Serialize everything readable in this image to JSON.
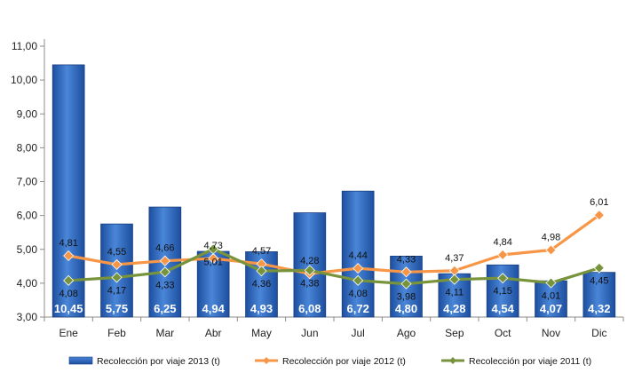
{
  "chart_data": {
    "type": "bar",
    "categories": [
      "Ene",
      "Feb",
      "Mar",
      "Abr",
      "May",
      "Jun",
      "Jul",
      "Ago",
      "Sep",
      "Oct",
      "Nov",
      "Dic"
    ],
    "ylim": [
      3.0,
      11.0
    ],
    "yticks": [
      "3,00",
      "4,00",
      "5,00",
      "6,00",
      "7,00",
      "8,00",
      "9,00",
      "10,00",
      "11,00"
    ],
    "ytick_values": [
      3,
      4,
      5,
      6,
      7,
      8,
      9,
      10,
      11
    ],
    "series": [
      {
        "name": "Recolección por viaje 2013 (t)",
        "kind": "bar",
        "color": "#3a6fc4",
        "values": [
          10.45,
          5.75,
          6.25,
          4.94,
          4.93,
          6.08,
          6.72,
          4.8,
          4.28,
          4.54,
          4.07,
          4.32
        ],
        "labels": [
          "10,45",
          "5,75",
          "6,25",
          "4,94",
          "4,93",
          "6,08",
          "6,72",
          "4,80",
          "4,28",
          "4,54",
          "4,07",
          "4,32"
        ]
      },
      {
        "name": "Recolección por viaje 2012 (t)",
        "kind": "line",
        "color": "#f79646",
        "values": [
          4.81,
          4.55,
          4.66,
          4.73,
          4.57,
          4.28,
          4.44,
          4.33,
          4.37,
          4.84,
          4.98,
          6.01
        ],
        "labels": [
          "4,81",
          "4,55",
          "4,66",
          "4,73",
          "4,57",
          "4,28",
          "4,44",
          "4,33",
          "4,37",
          "4,84",
          "4,98",
          "6,01"
        ]
      },
      {
        "name": "Recolección por viaje 2011 (t)",
        "kind": "line",
        "color": "#77933c",
        "values": [
          4.08,
          4.17,
          4.33,
          5.01,
          4.36,
          4.38,
          4.08,
          3.98,
          4.11,
          4.15,
          4.01,
          4.45
        ],
        "labels": [
          "4,08",
          "4,17",
          "4,33",
          "5,01",
          "4,36",
          "4,38",
          "4,08",
          "3,98",
          "4,11",
          "4,15",
          "4,01",
          "4,45"
        ]
      }
    ],
    "legend_position": "bottom",
    "grid": false
  }
}
